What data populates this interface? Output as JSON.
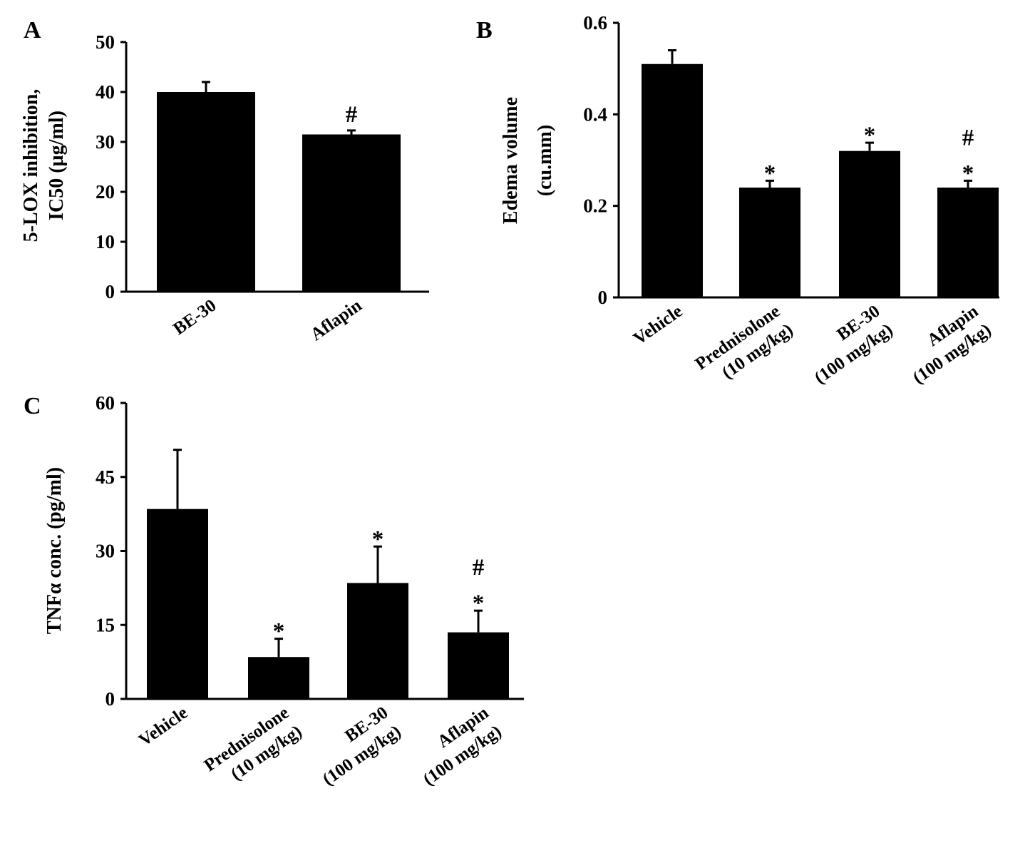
{
  "chart_data": [
    {
      "panel": "A",
      "type": "bar",
      "ylabel": "5-LOX inhibition, IC50 (µg/ml)",
      "ylabel_lines": [
        "5-LOX inhibition,",
        "IC50 (µg/ml)"
      ],
      "ylim": [
        0,
        50
      ],
      "yticks": [
        0,
        10,
        20,
        30,
        40,
        50
      ],
      "categories": [
        "BE-30",
        "Aflapin"
      ],
      "category_lines": [
        [
          "BE-30"
        ],
        [
          "Aflapin"
        ]
      ],
      "values": [
        40,
        31.5
      ],
      "errors": [
        2,
        0.8
      ],
      "annotations": [
        [],
        [
          "#"
        ]
      ],
      "color": "#000000"
    },
    {
      "panel": "B",
      "type": "bar",
      "ylabel": "Edema volume (cu.mm)",
      "ylabel_lines": [
        "Edema volume",
        "(cu.mm)"
      ],
      "ylim": [
        0,
        0.6
      ],
      "yticks": [
        0,
        0.2,
        0.4,
        0.6
      ],
      "categories": [
        "Vehicle",
        "Prednisolone (10 mg/kg)",
        "BE-30 (100 mg/kg)",
        "Aflapin (100 mg/kg)"
      ],
      "category_lines": [
        [
          "Vehicle"
        ],
        [
          "Prednisolone",
          "(10 mg/kg)"
        ],
        [
          "BE-30",
          "(100 mg/kg)"
        ],
        [
          "Aflapin",
          "(100 mg/kg)"
        ]
      ],
      "values": [
        0.51,
        0.24,
        0.32,
        0.24
      ],
      "errors": [
        0.03,
        0.015,
        0.018,
        0.015
      ],
      "annotations": [
        [],
        [
          "*"
        ],
        [
          "*"
        ],
        [
          "#",
          "*"
        ]
      ],
      "color": "#000000"
    },
    {
      "panel": "C",
      "type": "bar",
      "ylabel": "TNFα conc. (pg/ml)",
      "ylabel_lines": [
        "TNFα conc. (pg/ml)"
      ],
      "ylim": [
        0,
        60
      ],
      "yticks": [
        0,
        15,
        30,
        45,
        60
      ],
      "categories": [
        "Vehicle",
        "Prednisolone (10 mg/kg)",
        "BE-30 (100 mg/kg)",
        "Aflapin (100 mg/kg)"
      ],
      "category_lines": [
        [
          "Vehicle"
        ],
        [
          "Prednisolone",
          "(10 mg/kg)"
        ],
        [
          "BE-30",
          "(100 mg/kg)"
        ],
        [
          "Aflapin",
          "(100 mg/kg)"
        ]
      ],
      "values": [
        38.5,
        8.5,
        23.5,
        13.5
      ],
      "errors": [
        12,
        3.7,
        7.4,
        4.4
      ],
      "annotations": [
        [],
        [
          "*"
        ],
        [
          "*"
        ],
        [
          "#",
          "*"
        ]
      ],
      "color": "#000000"
    }
  ]
}
